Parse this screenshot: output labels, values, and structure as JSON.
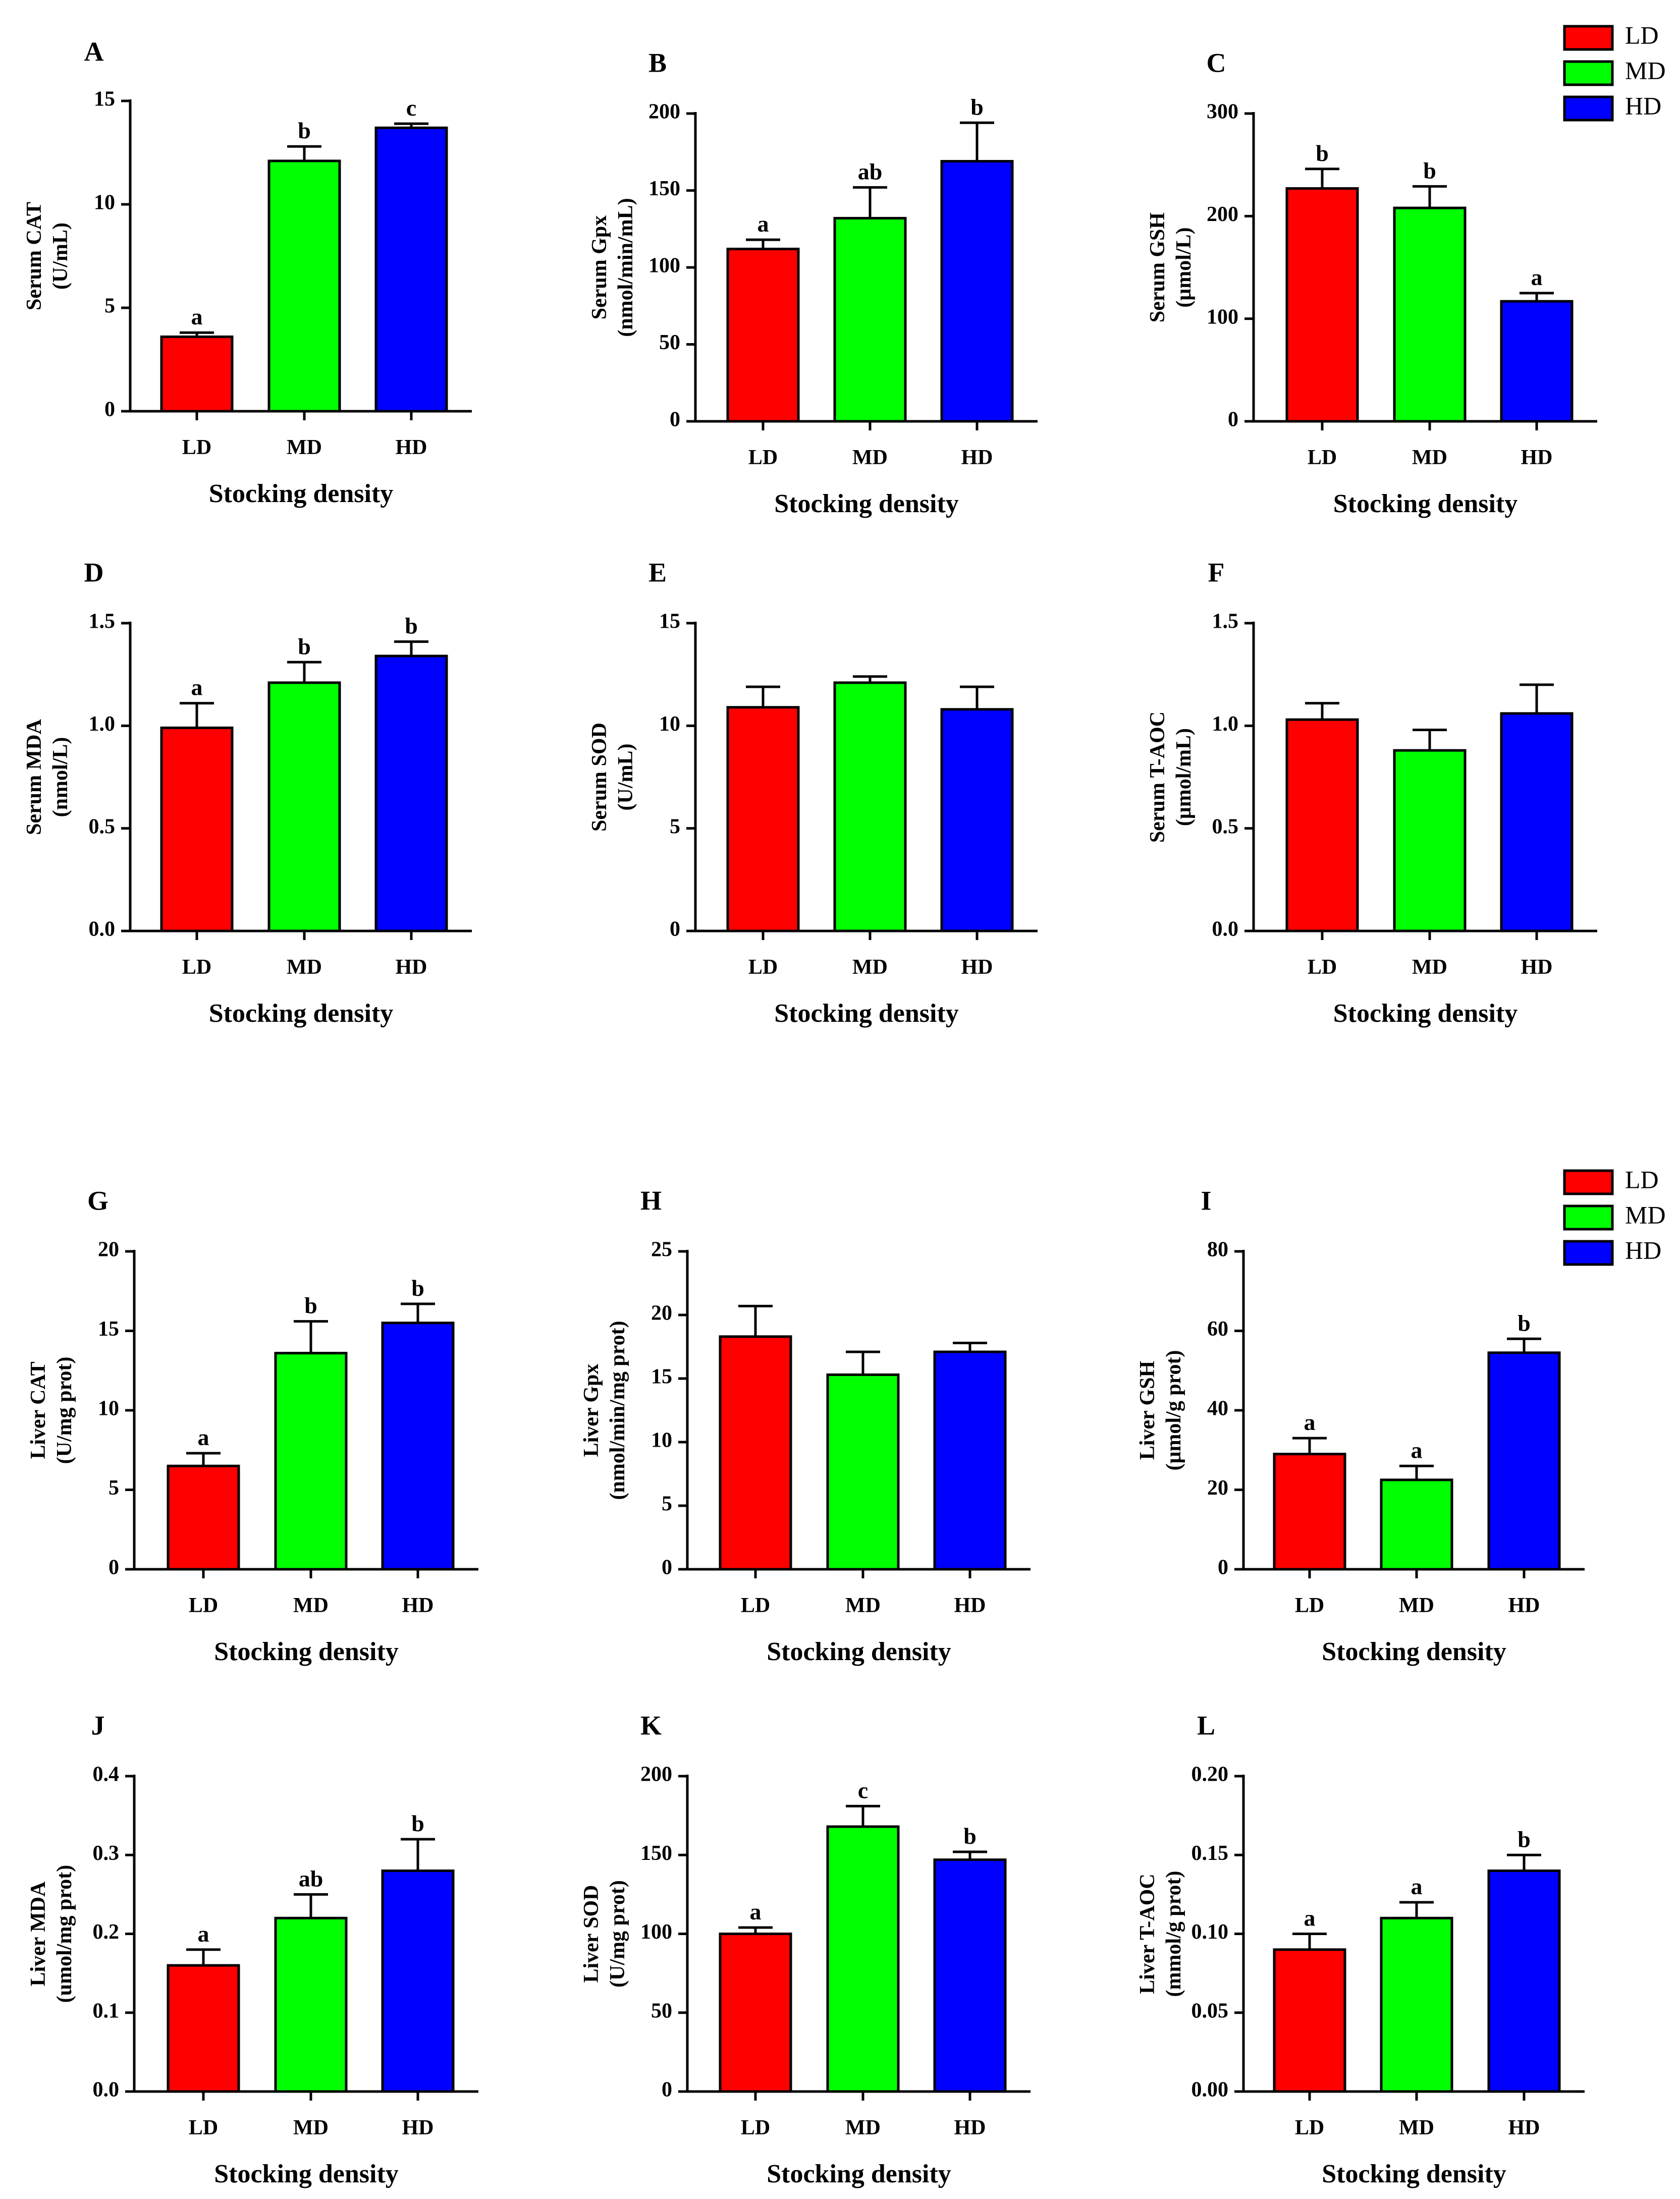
{
  "colors": {
    "LD": "#ff0000",
    "MD": "#00ff00",
    "HD": "#0000ff",
    "axis": "#000000"
  },
  "legend_groups": [
    {
      "entries": [
        {
          "label": "LD",
          "key": "LD"
        },
        {
          "label": "MD",
          "key": "MD"
        },
        {
          "label": "HD",
          "key": "HD"
        }
      ]
    },
    {
      "entries": [
        {
          "label": "LD",
          "key": "LD"
        },
        {
          "label": "MD",
          "key": "MD"
        },
        {
          "label": "HD",
          "key": "HD"
        }
      ]
    }
  ],
  "chart_data": [
    {
      "type": "bar",
      "panel": "A",
      "categories": [
        "LD",
        "MD",
        "HD"
      ],
      "values": [
        3.6,
        12.1,
        13.7
      ],
      "errors": [
        0.2,
        0.7,
        0.2
      ],
      "significance": [
        "a",
        "b",
        "c"
      ],
      "ylabel_lines": [
        "Serum CAT",
        "(U/mL)"
      ],
      "xlabel": "Stocking density",
      "ylim": [
        0,
        15
      ],
      "yticks": [
        0,
        5,
        10,
        15
      ],
      "ytick_labels": [
        "0",
        "5",
        "10",
        "15"
      ]
    },
    {
      "type": "bar",
      "panel": "B",
      "categories": [
        "LD",
        "MD",
        "HD"
      ],
      "values": [
        112,
        132,
        169
      ],
      "errors": [
        6,
        20,
        25
      ],
      "significance": [
        "a",
        "ab",
        "b"
      ],
      "ylabel_lines": [
        "Serum Gpx",
        "(nmol/min/mL)"
      ],
      "xlabel": "Stocking density",
      "ylim": [
        0,
        200
      ],
      "yticks": [
        0,
        50,
        100,
        150,
        200
      ],
      "ytick_labels": [
        "0",
        "50",
        "100",
        "150",
        "200"
      ]
    },
    {
      "type": "bar",
      "panel": "C",
      "categories": [
        "LD",
        "MD",
        "HD"
      ],
      "values": [
        227,
        208,
        117
      ],
      "errors": [
        19,
        21,
        8
      ],
      "significance": [
        "b",
        "b",
        "a"
      ],
      "ylabel_lines": [
        "Serum GSH",
        "(μmol/L)"
      ],
      "xlabel": "Stocking density",
      "ylim": [
        0,
        300
      ],
      "yticks": [
        0,
        100,
        200,
        300
      ],
      "ytick_labels": [
        "0",
        "100",
        "200",
        "300"
      ]
    },
    {
      "type": "bar",
      "panel": "D",
      "categories": [
        "LD",
        "MD",
        "HD"
      ],
      "values": [
        0.99,
        1.21,
        1.34
      ],
      "errors": [
        0.12,
        0.1,
        0.07
      ],
      "significance": [
        "a",
        "b",
        "b"
      ],
      "ylabel_lines": [
        "Serum MDA",
        "(nmol/L)"
      ],
      "xlabel": "Stocking density",
      "ylim": [
        0,
        1.5
      ],
      "yticks": [
        0,
        0.5,
        1.0,
        1.5
      ],
      "ytick_labels": [
        "0.0",
        "0.5",
        "1.0",
        "1.5"
      ]
    },
    {
      "type": "bar",
      "panel": "E",
      "categories": [
        "LD",
        "MD",
        "HD"
      ],
      "values": [
        10.9,
        12.1,
        10.8
      ],
      "errors": [
        1.0,
        0.3,
        1.1
      ],
      "significance": [
        "",
        "",
        ""
      ],
      "ylabel_lines": [
        "Serum SOD",
        "(U/mL)"
      ],
      "xlabel": "Stocking density",
      "ylim": [
        0,
        15
      ],
      "yticks": [
        0,
        5,
        10,
        15
      ],
      "ytick_labels": [
        "0",
        "5",
        "10",
        "15"
      ]
    },
    {
      "type": "bar",
      "panel": "F",
      "categories": [
        "LD",
        "MD",
        "HD"
      ],
      "values": [
        1.03,
        0.88,
        1.06
      ],
      "errors": [
        0.08,
        0.1,
        0.14
      ],
      "significance": [
        "",
        "",
        ""
      ],
      "ylabel_lines": [
        "Serum T-AOC",
        "(μmol/mL)"
      ],
      "xlabel": "Stocking density",
      "ylim": [
        0,
        1.5
      ],
      "yticks": [
        0,
        0.5,
        1.0,
        1.5
      ],
      "ytick_labels": [
        "0.0",
        "0.5",
        "1.0",
        "1.5"
      ]
    },
    {
      "type": "bar",
      "panel": "G",
      "categories": [
        "LD",
        "MD",
        "HD"
      ],
      "values": [
        6.5,
        13.6,
        15.5
      ],
      "errors": [
        0.8,
        2.0,
        1.2
      ],
      "significance": [
        "a",
        "b",
        "b"
      ],
      "ylabel_lines": [
        "Liver CAT",
        "(U/mg prot)"
      ],
      "xlabel": "Stocking density",
      "ylim": [
        0,
        20
      ],
      "yticks": [
        0,
        5,
        10,
        15,
        20
      ],
      "ytick_labels": [
        "0",
        "5",
        "10",
        "15",
        "20"
      ]
    },
    {
      "type": "bar",
      "panel": "H",
      "categories": [
        "LD",
        "MD",
        "HD"
      ],
      "values": [
        18.3,
        15.3,
        17.1
      ],
      "errors": [
        2.4,
        1.8,
        0.7
      ],
      "significance": [
        "",
        "",
        ""
      ],
      "ylabel_lines": [
        "Liver Gpx",
        "(nmol/min/mg prot)"
      ],
      "xlabel": "Stocking density",
      "ylim": [
        0,
        25
      ],
      "yticks": [
        0,
        5,
        10,
        15,
        20,
        25
      ],
      "ytick_labels": [
        "0",
        "5",
        "10",
        "15",
        "20",
        "25"
      ]
    },
    {
      "type": "bar",
      "panel": "I",
      "categories": [
        "LD",
        "MD",
        "HD"
      ],
      "values": [
        29,
        22.5,
        54.5
      ],
      "errors": [
        4,
        3.5,
        3.5
      ],
      "significance": [
        "a",
        "a",
        "b"
      ],
      "ylabel_lines": [
        "Liver GSH",
        "(μmol/g prot)"
      ],
      "xlabel": "Stocking density",
      "ylim": [
        0,
        80
      ],
      "yticks": [
        0,
        20,
        40,
        60,
        80
      ],
      "ytick_labels": [
        "0",
        "20",
        "40",
        "60",
        "80"
      ]
    },
    {
      "type": "bar",
      "panel": "J",
      "categories": [
        "LD",
        "MD",
        "HD"
      ],
      "values": [
        0.16,
        0.22,
        0.28
      ],
      "errors": [
        0.02,
        0.03,
        0.04
      ],
      "significance": [
        "a",
        "ab",
        "b"
      ],
      "ylabel_lines": [
        "Liver MDA",
        "(umol/mg prot)"
      ],
      "xlabel": "Stocking density",
      "ylim": [
        0,
        0.4
      ],
      "yticks": [
        0,
        0.1,
        0.2,
        0.3,
        0.4
      ],
      "ytick_labels": [
        "0.0",
        "0.1",
        "0.2",
        "0.3",
        "0.4"
      ]
    },
    {
      "type": "bar",
      "panel": "K",
      "categories": [
        "LD",
        "MD",
        "HD"
      ],
      "values": [
        100,
        168,
        147
      ],
      "errors": [
        4,
        13,
        5
      ],
      "significance": [
        "a",
        "c",
        "b"
      ],
      "ylabel_lines": [
        "Liver SOD",
        "(U/mg prot)"
      ],
      "xlabel": "Stocking density",
      "ylim": [
        0,
        200
      ],
      "yticks": [
        0,
        50,
        100,
        150,
        200
      ],
      "ytick_labels": [
        "0",
        "50",
        "100",
        "150",
        "200"
      ]
    },
    {
      "type": "bar",
      "panel": "L",
      "categories": [
        "LD",
        "MD",
        "HD"
      ],
      "values": [
        0.09,
        0.11,
        0.14
      ],
      "errors": [
        0.01,
        0.01,
        0.01
      ],
      "significance": [
        "a",
        "a",
        "b"
      ],
      "ylabel_lines": [
        "Liver T-AOC",
        "(mmol/g prot)"
      ],
      "xlabel": "Stocking density",
      "ylim": [
        0,
        0.2
      ],
      "yticks": [
        0,
        0.05,
        0.1,
        0.15,
        0.2
      ],
      "ytick_labels": [
        "0.00",
        "0.05",
        "0.10",
        "0.15",
        "0.20"
      ]
    }
  ]
}
